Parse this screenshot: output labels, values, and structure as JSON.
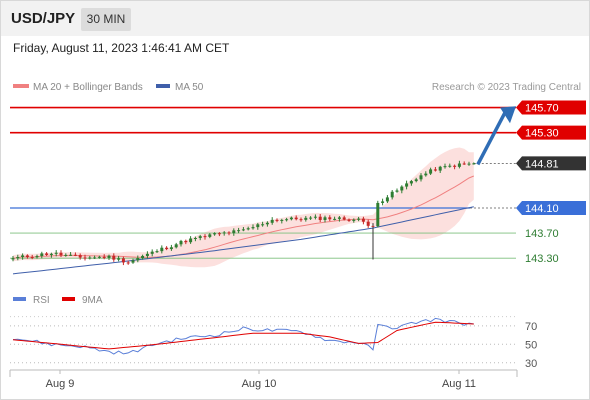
{
  "header": {
    "pair": "USD/JPY",
    "timeframe": "30 MIN",
    "datetime": "Friday, August 11, 2023 1:46:41 AM CET"
  },
  "legend": {
    "ma20": "MA 20 + Bollinger Bands",
    "ma50": "MA 50",
    "source": "Research © 2023 Trading Central"
  },
  "rsi_legend": {
    "rsi": "RSI",
    "ma9": "9MA"
  },
  "colors": {
    "up": "#2e7d32",
    "down": "#c62828",
    "ma20": "#f08080",
    "ma50": "#3f5faa",
    "band": "#fbdad8",
    "resistance": "#e00000",
    "support": "#3a6fd8",
    "target": "#2e7d32",
    "arrow": "#2f6db5",
    "last": "#333333"
  },
  "chart_data": {
    "type": "candlestick",
    "x_labels": [
      "Aug 9",
      "Aug 10",
      "Aug 11"
    ],
    "ylim": [
      143.08,
      145.82
    ],
    "price_levels": [
      {
        "label": "145.70",
        "value": 145.7,
        "kind": "resistance"
      },
      {
        "label": "145.30",
        "value": 145.3,
        "kind": "resistance"
      },
      {
        "label": "144.81",
        "value": 144.81,
        "kind": "last"
      },
      {
        "label": "144.10",
        "value": 144.1,
        "kind": "support"
      },
      {
        "label": "143.70",
        "value": 143.7,
        "kind": "target"
      },
      {
        "label": "143.30",
        "value": 143.3,
        "kind": "target"
      }
    ],
    "close_anchors": [
      [
        0,
        143.3
      ],
      [
        8,
        143.38
      ],
      [
        14,
        143.31
      ],
      [
        20,
        143.32
      ],
      [
        24,
        143.24
      ],
      [
        30,
        143.42
      ],
      [
        36,
        143.58
      ],
      [
        42,
        143.68
      ],
      [
        48,
        143.74
      ],
      [
        54,
        143.91
      ],
      [
        60,
        143.93
      ],
      [
        66,
        143.94
      ],
      [
        72,
        143.91
      ],
      [
        75,
        143.81
      ],
      [
        76,
        144.18
      ],
      [
        80,
        144.38
      ],
      [
        84,
        144.58
      ],
      [
        88,
        144.72
      ],
      [
        92,
        144.78
      ],
      [
        96,
        144.81
      ]
    ],
    "wick_events": [
      {
        "i": 75,
        "low": 143.28
      }
    ],
    "rsi": {
      "ylim": [
        20,
        85
      ],
      "levels": [
        70,
        50,
        30
      ],
      "anchors": [
        [
          0,
          57
        ],
        [
          8,
          50
        ],
        [
          14,
          48
        ],
        [
          20,
          42
        ],
        [
          24,
          40
        ],
        [
          30,
          51
        ],
        [
          36,
          57
        ],
        [
          42,
          60
        ],
        [
          48,
          67
        ],
        [
          54,
          65
        ],
        [
          60,
          64
        ],
        [
          66,
          54
        ],
        [
          72,
          52
        ],
        [
          75,
          45
        ],
        [
          76,
          70
        ],
        [
          80,
          68
        ],
        [
          84,
          74
        ],
        [
          88,
          77
        ],
        [
          92,
          74
        ],
        [
          96,
          71
        ]
      ],
      "ma9_anchors": [
        [
          0,
          55
        ],
        [
          10,
          50
        ],
        [
          20,
          45
        ],
        [
          30,
          50
        ],
        [
          40,
          56
        ],
        [
          50,
          62
        ],
        [
          60,
          62
        ],
        [
          66,
          58
        ],
        [
          72,
          51
        ],
        [
          76,
          52
        ],
        [
          80,
          65
        ],
        [
          88,
          74
        ],
        [
          96,
          72
        ]
      ]
    }
  }
}
